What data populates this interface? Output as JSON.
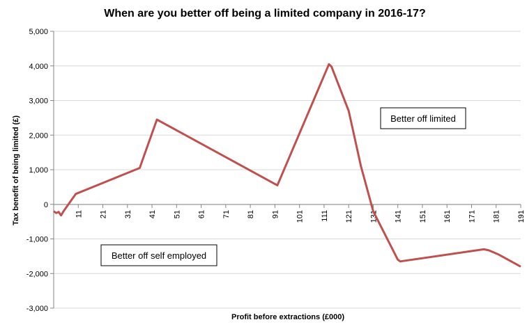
{
  "chart_data": {
    "type": "line",
    "title": "When are you better off being a limited company in 2016-17?",
    "xlabel": "Profit before extractions (£000)",
    "ylabel": "Tax benefit of being limited (£)",
    "ylim": [
      -3000,
      5000
    ],
    "y_ticks": [
      5000,
      4000,
      3000,
      2000,
      1000,
      0,
      -1000,
      -2000,
      -3000
    ],
    "y_tick_labels": [
      "5,000",
      "4,000",
      "3,000",
      "2,000",
      "1,000",
      "0",
      "-1,000",
      "-2,000",
      "-3,000"
    ],
    "xlim": [
      1,
      191
    ],
    "x_ticks": [
      "11",
      "21",
      "31",
      "41",
      "51",
      "61",
      "71",
      "81",
      "91",
      "101",
      "111",
      "121",
      "131",
      "141",
      "151",
      "161",
      "171",
      "181",
      "191"
    ],
    "grid": "horizontal",
    "legend": "none",
    "line_color": "#C0504D",
    "series": [
      {
        "x": [
          1,
          2,
          3,
          4,
          5,
          8,
          10,
          36,
          43,
          92,
          113,
          114,
          121,
          126,
          131,
          141,
          142,
          176,
          178,
          182,
          191
        ],
        "values": [
          -200,
          -250,
          -220,
          -320,
          -200,
          100,
          300,
          1050,
          2450,
          550,
          4050,
          3980,
          2700,
          1100,
          -200,
          -1600,
          -1650,
          -1300,
          -1330,
          -1450,
          -1800
        ]
      }
    ],
    "annotations": [
      {
        "text": "Better off limited"
      },
      {
        "text": "Better off self employed"
      }
    ]
  }
}
